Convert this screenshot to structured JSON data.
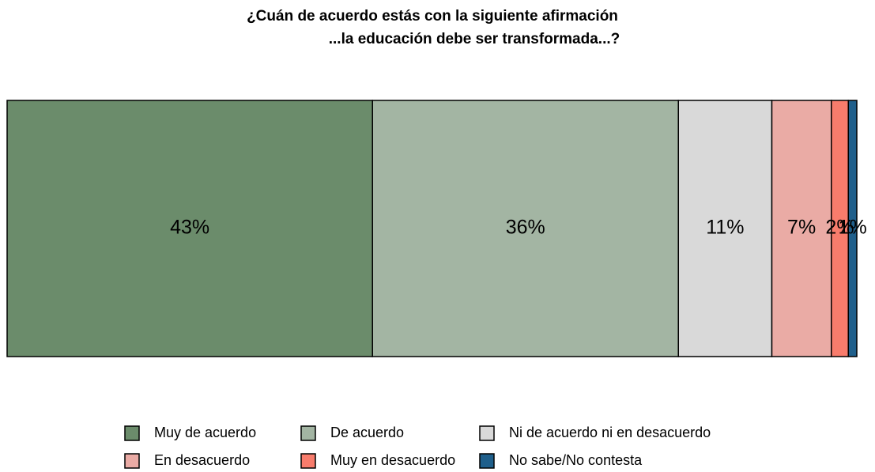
{
  "chart_data": {
    "type": "bar",
    "orientation": "horizontal",
    "stacked": true,
    "title": [
      "¿Cuán de acuerdo estás con la siguiente afirmación",
      "...la educación debe ser transformada...?"
    ],
    "series": [
      {
        "name": "Muy de acuerdo",
        "color": "#6b8c6b",
        "values": [
          43
        ],
        "value_labels": [
          "43%"
        ]
      },
      {
        "name": "De acuerdo",
        "color": "#a3b5a3",
        "values": [
          36
        ],
        "value_labels": [
          "36%"
        ]
      },
      {
        "name": "Ni de acuerdo ni en desacuerdo",
        "color": "#d9d9d9",
        "values": [
          11
        ],
        "value_labels": [
          "11%"
        ]
      },
      {
        "name": "En desacuerdo",
        "color": "#eaaba5",
        "values": [
          7
        ],
        "value_labels": [
          "7%"
        ]
      },
      {
        "name": "Muy en desacuerdo",
        "color": "#f87c6c",
        "values": [
          2
        ],
        "value_labels": [
          "2%"
        ]
      },
      {
        "name": "No sabe/No contesta",
        "color": "#1f5f8b",
        "values": [
          1
        ],
        "value_labels": [
          "1%"
        ]
      }
    ],
    "legend": "bottom"
  }
}
